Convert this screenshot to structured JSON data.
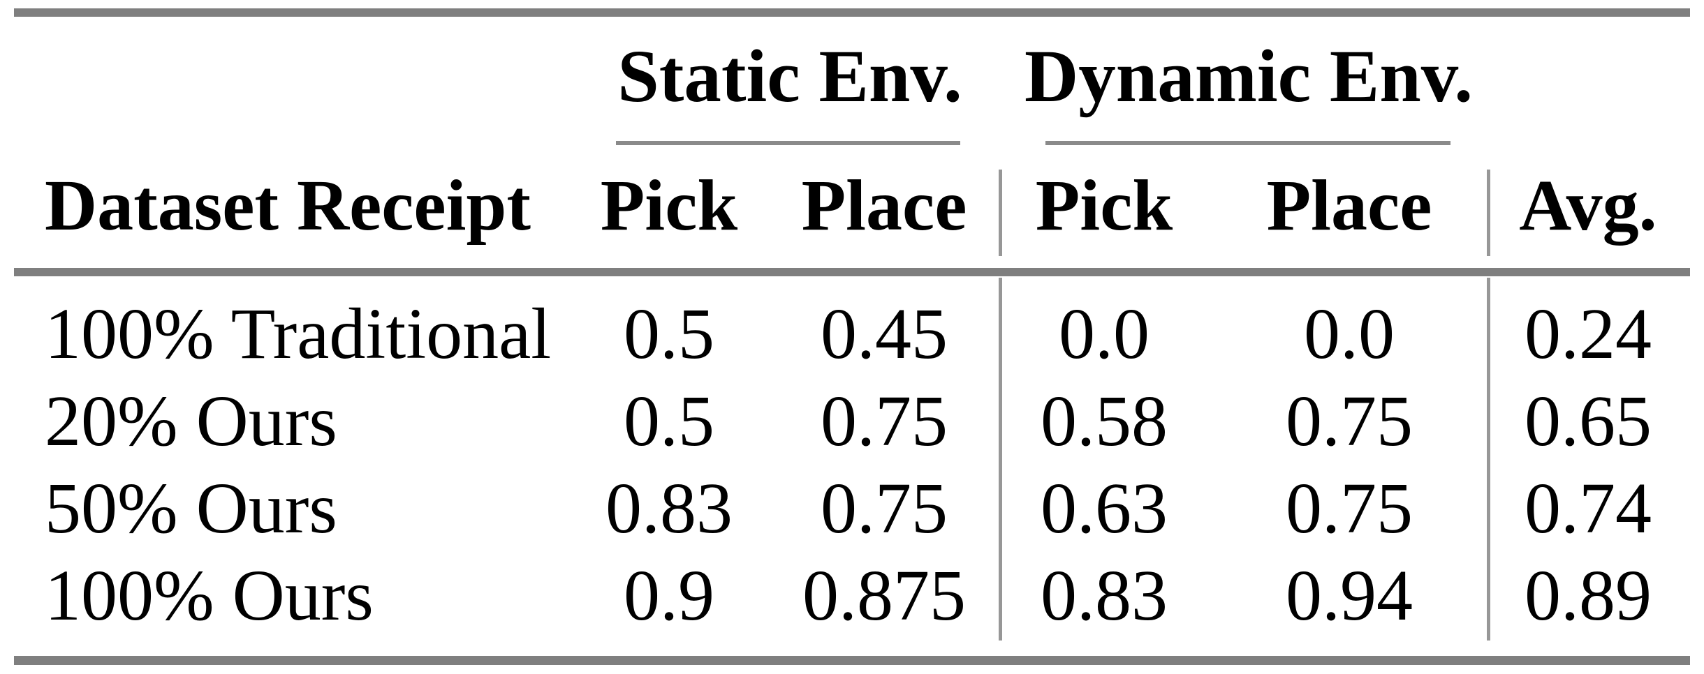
{
  "table": {
    "col_groups": {
      "static": {
        "label": "Static Env."
      },
      "dynamic": {
        "label": "Dynamic Env."
      }
    },
    "headers": {
      "row_label": "Dataset Receipt",
      "static_pick": "Pick",
      "static_place": "Place",
      "dynamic_pick": "Pick",
      "dynamic_place": "Place",
      "avg": "Avg."
    },
    "rows": [
      {
        "label": "100% Traditional",
        "static_pick": "0.5",
        "static_place": "0.45",
        "dynamic_pick": "0.0",
        "dynamic_place": "0.0",
        "avg": "0.24"
      },
      {
        "label": "20% Ours",
        "static_pick": "0.5",
        "static_place": "0.75",
        "dynamic_pick": "0.58",
        "dynamic_place": "0.75",
        "avg": "0.65"
      },
      {
        "label": "50% Ours",
        "static_pick": "0.83",
        "static_place": "0.75",
        "dynamic_pick": "0.63",
        "dynamic_place": "0.75",
        "avg": "0.74"
      },
      {
        "label": "100% Ours",
        "static_pick": "0.9",
        "static_place": "0.875",
        "dynamic_pick": "0.83",
        "dynamic_place": "0.94",
        "avg": "0.89"
      }
    ],
    "colors": {
      "text": "#000000",
      "thick_rule": "#7f7f7f",
      "thin_rule": "#8a8a8a",
      "vertical_rule": "#979797",
      "background": "#ffffff"
    }
  },
  "chart_data": {
    "type": "table",
    "title": "",
    "column_groups": [
      {
        "label": "Static Env.",
        "columns": [
          "Pick",
          "Place"
        ]
      },
      {
        "label": "Dynamic Env.",
        "columns": [
          "Pick",
          "Place"
        ]
      }
    ],
    "columns": [
      "Dataset Receipt",
      "Static Env. Pick",
      "Static Env. Place",
      "Dynamic Env. Pick",
      "Dynamic Env. Place",
      "Avg."
    ],
    "rows": [
      [
        "100% Traditional",
        0.5,
        0.45,
        0.0,
        0.0,
        0.24
      ],
      [
        "20% Ours",
        0.5,
        0.75,
        0.58,
        0.75,
        0.65
      ],
      [
        "50% Ours",
        0.83,
        0.75,
        0.63,
        0.75,
        0.74
      ],
      [
        "100% Ours",
        0.9,
        0.875,
        0.83,
        0.94,
        0.89
      ]
    ]
  }
}
